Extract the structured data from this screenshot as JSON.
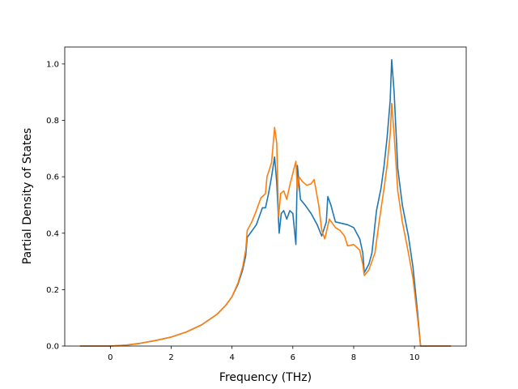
{
  "chart_data": {
    "type": "line",
    "title": "",
    "xlabel": "Frequency (THz)",
    "ylabel": "Partial Density of States",
    "xlim": [
      -1.5,
      11.7
    ],
    "ylim": [
      0.0,
      1.06
    ],
    "xticks": [
      0,
      2,
      4,
      6,
      8,
      10
    ],
    "yticks": [
      0.0,
      0.2,
      0.4,
      0.6,
      0.8,
      1.0
    ],
    "xtick_labels": [
      "0",
      "2",
      "4",
      "6",
      "8",
      "10"
    ],
    "ytick_labels": [
      "0.0",
      "0.2",
      "0.4",
      "0.6",
      "0.8",
      "1.0"
    ],
    "grid": false,
    "legend": "none",
    "series": [
      {
        "color": "#1f77b4",
        "points": [
          [
            -1.0,
            0.0
          ],
          [
            0.0,
            0.0
          ],
          [
            0.5,
            0.003
          ],
          [
            1.0,
            0.01
          ],
          [
            1.5,
            0.02
          ],
          [
            2.0,
            0.032
          ],
          [
            2.5,
            0.05
          ],
          [
            3.0,
            0.075
          ],
          [
            3.5,
            0.112
          ],
          [
            3.8,
            0.145
          ],
          [
            4.0,
            0.175
          ],
          [
            4.2,
            0.22
          ],
          [
            4.35,
            0.27
          ],
          [
            4.45,
            0.32
          ],
          [
            4.5,
            0.385
          ],
          [
            4.6,
            0.4
          ],
          [
            4.8,
            0.43
          ],
          [
            4.9,
            0.46
          ],
          [
            5.0,
            0.49
          ],
          [
            5.1,
            0.49
          ],
          [
            5.2,
            0.54
          ],
          [
            5.3,
            0.6
          ],
          [
            5.4,
            0.67
          ],
          [
            5.47,
            0.58
          ],
          [
            5.55,
            0.4
          ],
          [
            5.62,
            0.47
          ],
          [
            5.7,
            0.48
          ],
          [
            5.8,
            0.45
          ],
          [
            5.9,
            0.48
          ],
          [
            6.0,
            0.47
          ],
          [
            6.1,
            0.36
          ],
          [
            6.15,
            0.64
          ],
          [
            6.25,
            0.52
          ],
          [
            6.4,
            0.5
          ],
          [
            6.6,
            0.47
          ],
          [
            6.8,
            0.43
          ],
          [
            6.95,
            0.39
          ],
          [
            7.1,
            0.44
          ],
          [
            7.15,
            0.53
          ],
          [
            7.25,
            0.5
          ],
          [
            7.4,
            0.44
          ],
          [
            7.6,
            0.435
          ],
          [
            7.8,
            0.43
          ],
          [
            8.0,
            0.42
          ],
          [
            8.2,
            0.38
          ],
          [
            8.3,
            0.33
          ],
          [
            8.35,
            0.26
          ],
          [
            8.5,
            0.29
          ],
          [
            8.6,
            0.33
          ],
          [
            8.75,
            0.48
          ],
          [
            8.9,
            0.56
          ],
          [
            9.0,
            0.64
          ],
          [
            9.1,
            0.74
          ],
          [
            9.2,
            0.87
          ],
          [
            9.25,
            1.015
          ],
          [
            9.33,
            0.9
          ],
          [
            9.45,
            0.63
          ],
          [
            9.6,
            0.5
          ],
          [
            9.8,
            0.39
          ],
          [
            9.95,
            0.28
          ],
          [
            10.1,
            0.12
          ],
          [
            10.2,
            0.0
          ],
          [
            11.2,
            0.0
          ]
        ]
      },
      {
        "color": "#ff7f0e",
        "points": [
          [
            -1.0,
            0.0
          ],
          [
            0.0,
            0.0
          ],
          [
            0.5,
            0.003
          ],
          [
            1.0,
            0.01
          ],
          [
            1.5,
            0.02
          ],
          [
            2.0,
            0.032
          ],
          [
            2.5,
            0.05
          ],
          [
            3.0,
            0.075
          ],
          [
            3.5,
            0.112
          ],
          [
            3.8,
            0.145
          ],
          [
            4.0,
            0.175
          ],
          [
            4.2,
            0.225
          ],
          [
            4.35,
            0.28
          ],
          [
            4.45,
            0.34
          ],
          [
            4.5,
            0.41
          ],
          [
            4.65,
            0.44
          ],
          [
            4.8,
            0.48
          ],
          [
            4.95,
            0.525
          ],
          [
            5.1,
            0.54
          ],
          [
            5.15,
            0.6
          ],
          [
            5.3,
            0.65
          ],
          [
            5.4,
            0.775
          ],
          [
            5.47,
            0.72
          ],
          [
            5.53,
            0.46
          ],
          [
            5.6,
            0.54
          ],
          [
            5.7,
            0.55
          ],
          [
            5.8,
            0.52
          ],
          [
            5.9,
            0.57
          ],
          [
            6.1,
            0.655
          ],
          [
            6.15,
            0.55
          ],
          [
            6.2,
            0.6
          ],
          [
            6.3,
            0.585
          ],
          [
            6.45,
            0.57
          ],
          [
            6.6,
            0.575
          ],
          [
            6.7,
            0.59
          ],
          [
            6.85,
            0.5
          ],
          [
            6.95,
            0.41
          ],
          [
            7.05,
            0.38
          ],
          [
            7.2,
            0.45
          ],
          [
            7.4,
            0.42
          ],
          [
            7.55,
            0.41
          ],
          [
            7.7,
            0.39
          ],
          [
            7.8,
            0.355
          ],
          [
            8.0,
            0.36
          ],
          [
            8.2,
            0.34
          ],
          [
            8.3,
            0.29
          ],
          [
            8.35,
            0.25
          ],
          [
            8.5,
            0.27
          ],
          [
            8.7,
            0.33
          ],
          [
            8.85,
            0.45
          ],
          [
            9.0,
            0.56
          ],
          [
            9.1,
            0.64
          ],
          [
            9.2,
            0.75
          ],
          [
            9.25,
            0.86
          ],
          [
            9.33,
            0.75
          ],
          [
            9.45,
            0.55
          ],
          [
            9.6,
            0.44
          ],
          [
            9.8,
            0.33
          ],
          [
            9.95,
            0.24
          ],
          [
            10.1,
            0.1
          ],
          [
            10.2,
            0.0
          ],
          [
            11.2,
            0.0
          ]
        ]
      }
    ]
  }
}
